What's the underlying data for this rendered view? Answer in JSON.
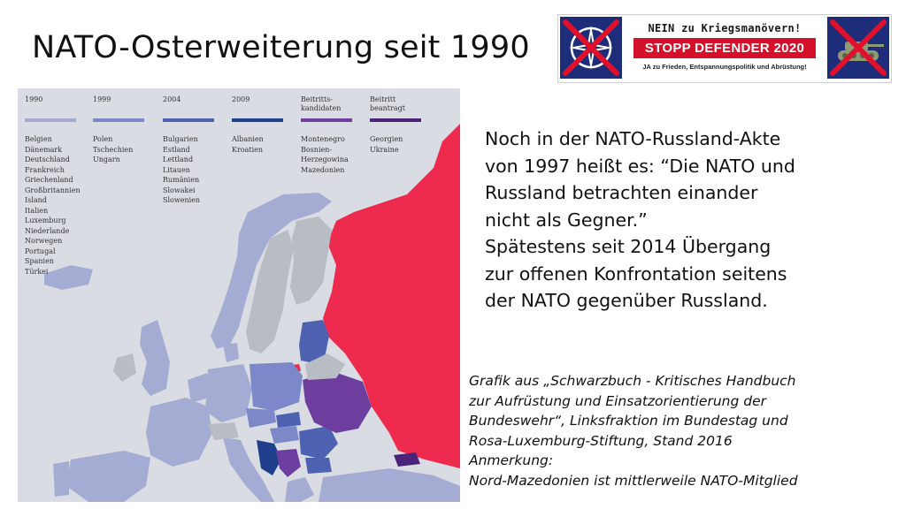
{
  "title": "NATO-Osterweiterung seit 1990",
  "banner": {
    "line1": "NEIN zu Kriegsmanövern!",
    "line2": "STOPP DEFENDER 2020",
    "line3": "JA zu Frieden, Entspannungspolitik und Abrüstung!"
  },
  "legend": [
    {
      "label": "1990",
      "color": "#a4acd4",
      "countries": [
        "Belgien",
        "Dänemark",
        "Deutschland",
        "Frankreich",
        "Griechenland",
        "Großbritannien",
        "Island",
        "Italien",
        "Luxemburg",
        "Niederlande",
        "Norwegen",
        "Portugal",
        "Spanien",
        "Türkei"
      ]
    },
    {
      "label": "1999",
      "color": "#7c88c8",
      "countries": [
        "Polen",
        "Tschechien",
        "Ungarn"
      ]
    },
    {
      "label": "2004",
      "color": "#4f62b1",
      "countries": [
        "Bulgarien",
        "Estland",
        "Lettland",
        "Litauen",
        "Rumänien",
        "Slowakei",
        "Slowenien"
      ]
    },
    {
      "label": "2009",
      "color": "#1f3f8c",
      "countries": [
        "Albanien",
        "Kroatien"
      ]
    },
    {
      "label": "Beitritts-\nkandidaten",
      "color": "#6e3e9f",
      "countries": [
        "Montenegro",
        "Bosnien-",
        "Herzegowina",
        "Mazedonien"
      ]
    },
    {
      "label": "Beitritt\nbeantragt",
      "color": "#4b237a",
      "countries": [
        "Georgien",
        "Ukraine"
      ]
    }
  ],
  "colors": {
    "russia": "#ee2a4f",
    "neutral": "#b8bcc3",
    "sea": "#d9dde3"
  },
  "quote": [
    "Noch in der NATO-Russland-Akte",
    "von 1997 heißt es: “Die NATO und",
    "Russland betrachten einander",
    "nicht als Gegner.”",
    "Spätestens seit 2014 Übergang",
    "zur offenen Konfrontation seitens",
    "der NATO gegenüber Russland."
  ],
  "source": [
    "Grafik aus „Schwarzbuch - Kritisches Handbuch",
    "zur Aufrüstung und Einsatzorientierung der",
    "Bundeswehr“, Linksfraktion im Bundestag und",
    "Rosa-Luxemburg-Stiftung, Stand 2016",
    "Anmerkung:",
    "Nord-Mazedonien ist mittlerweile NATO-Mitglied"
  ]
}
